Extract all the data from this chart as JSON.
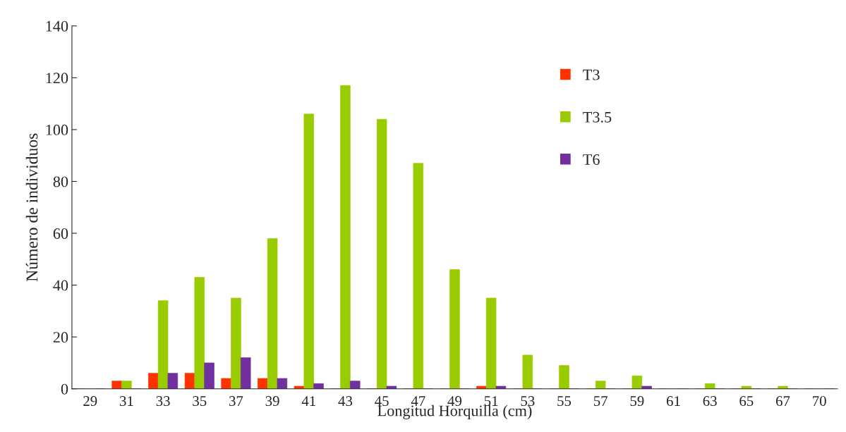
{
  "chart_data": {
    "type": "bar",
    "xlabel": "Longitud Horquilla (cm)",
    "ylabel": "Número de individuos",
    "categories": [
      "29",
      "31",
      "33",
      "35",
      "37",
      "39",
      "41",
      "43",
      "45",
      "47",
      "49",
      "51",
      "53",
      "55",
      "57",
      "59",
      "61",
      "63",
      "65",
      "67",
      "70"
    ],
    "series": [
      {
        "name": "T3",
        "color": "#ff3300",
        "values": [
          0,
          3,
          6,
          6,
          4,
          4,
          1,
          0,
          0,
          0,
          0,
          1,
          0,
          0,
          0,
          0,
          0,
          0,
          0,
          0,
          0
        ]
      },
      {
        "name": "T3.5",
        "color": "#99cc00",
        "values": [
          0,
          3,
          34,
          43,
          35,
          58,
          106,
          117,
          104,
          87,
          46,
          35,
          13,
          9,
          3,
          5,
          0,
          2,
          1,
          1,
          0
        ]
      },
      {
        "name": "T6",
        "color": "#7030a0",
        "values": [
          0,
          0,
          6,
          10,
          12,
          4,
          2,
          3,
          1,
          0,
          0,
          1,
          0,
          0,
          0,
          1,
          0,
          0,
          0,
          0,
          0
        ]
      }
    ],
    "ylim": [
      0,
      140
    ],
    "yticks": [
      0,
      20,
      40,
      60,
      80,
      100,
      120,
      140
    ],
    "grid": false,
    "legend": "top right"
  }
}
